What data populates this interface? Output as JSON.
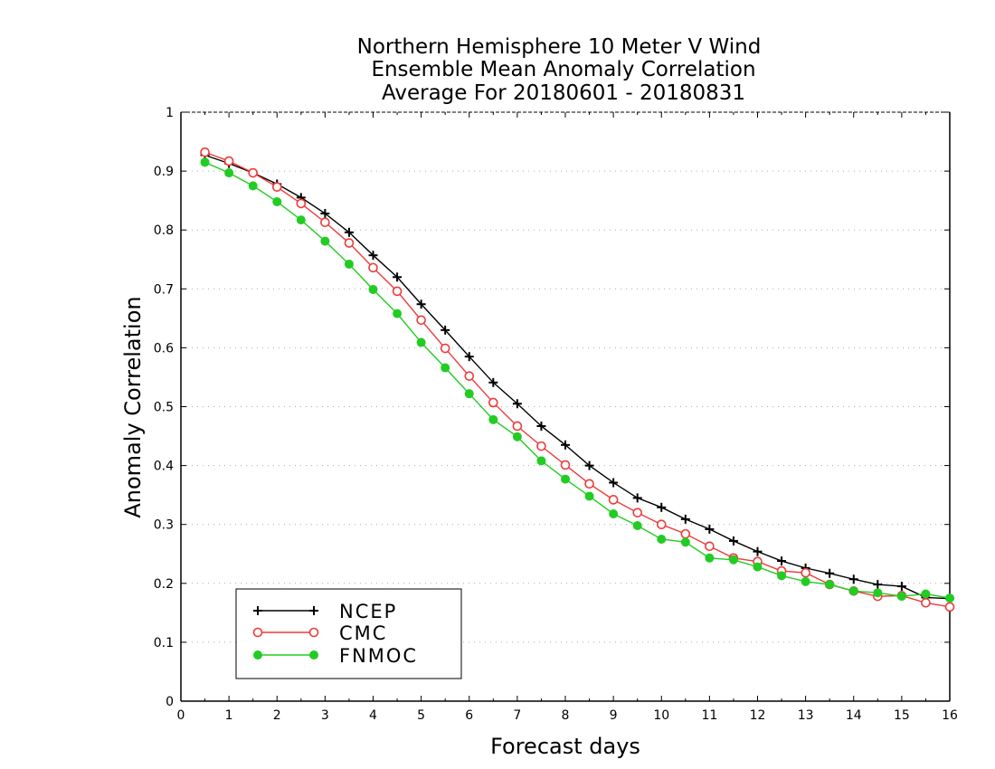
{
  "chart_data": {
    "type": "line",
    "title_lines": [
      "Northern Hemisphere 10 Meter V Wind",
      "Ensemble Mean Anomaly Correlation",
      "Average For 20180601 - 20180831"
    ],
    "xlabel": "Forecast days",
    "ylabel": "Anomaly Correlation",
    "xlim": [
      0,
      16
    ],
    "ylim": [
      0,
      1
    ],
    "xticks": [
      "0",
      "1",
      "2",
      "3",
      "4",
      "5",
      "6",
      "7",
      "8",
      "9",
      "10",
      "11",
      "12",
      "13",
      "14",
      "15",
      "16"
    ],
    "yticks": [
      "0",
      "0.1",
      "0.2",
      "0.3",
      "0.4",
      "0.5",
      "0.6",
      "0.7",
      "0.8",
      "0.9",
      "1"
    ],
    "grid": "horizontal dotted",
    "legend_position": "bottom-left",
    "x": [
      0.5,
      1,
      1.5,
      2,
      2.5,
      3,
      3.5,
      4,
      4.5,
      5,
      5.5,
      6,
      6.5,
      7,
      7.5,
      8,
      8.5,
      9,
      9.5,
      10,
      10.5,
      11,
      11.5,
      12,
      12.5,
      13,
      13.5,
      14,
      14.5,
      15,
      15.5,
      16
    ],
    "series": [
      {
        "name": "NCEP",
        "color": "#000000",
        "marker": "plus",
        "values": [
          0.927,
          0.913,
          0.897,
          0.878,
          0.855,
          0.828,
          0.796,
          0.757,
          0.72,
          0.674,
          0.63,
          0.585,
          0.541,
          0.505,
          0.467,
          0.435,
          0.4,
          0.371,
          0.345,
          0.329,
          0.309,
          0.292,
          0.272,
          0.254,
          0.238,
          0.226,
          0.217,
          0.207,
          0.198,
          0.195,
          0.176,
          0.174
        ]
      },
      {
        "name": "CMC",
        "color": "#ee3a3a",
        "marker": "open-circle",
        "values": [
          0.932,
          0.917,
          0.897,
          0.873,
          0.845,
          0.813,
          0.778,
          0.736,
          0.696,
          0.647,
          0.599,
          0.552,
          0.507,
          0.467,
          0.433,
          0.401,
          0.369,
          0.342,
          0.32,
          0.3,
          0.284,
          0.263,
          0.243,
          0.237,
          0.221,
          0.218,
          0.198,
          0.187,
          0.178,
          0.179,
          0.167,
          0.16
        ]
      },
      {
        "name": "FNMOC",
        "color": "#22cc22",
        "marker": "filled-circle",
        "values": [
          0.915,
          0.897,
          0.875,
          0.848,
          0.817,
          0.781,
          0.742,
          0.699,
          0.658,
          0.609,
          0.566,
          0.522,
          0.478,
          0.449,
          0.408,
          0.377,
          0.348,
          0.318,
          0.298,
          0.275,
          0.27,
          0.243,
          0.24,
          0.228,
          0.213,
          0.203,
          0.198,
          0.187,
          0.184,
          0.178,
          0.182,
          0.175
        ]
      }
    ]
  }
}
